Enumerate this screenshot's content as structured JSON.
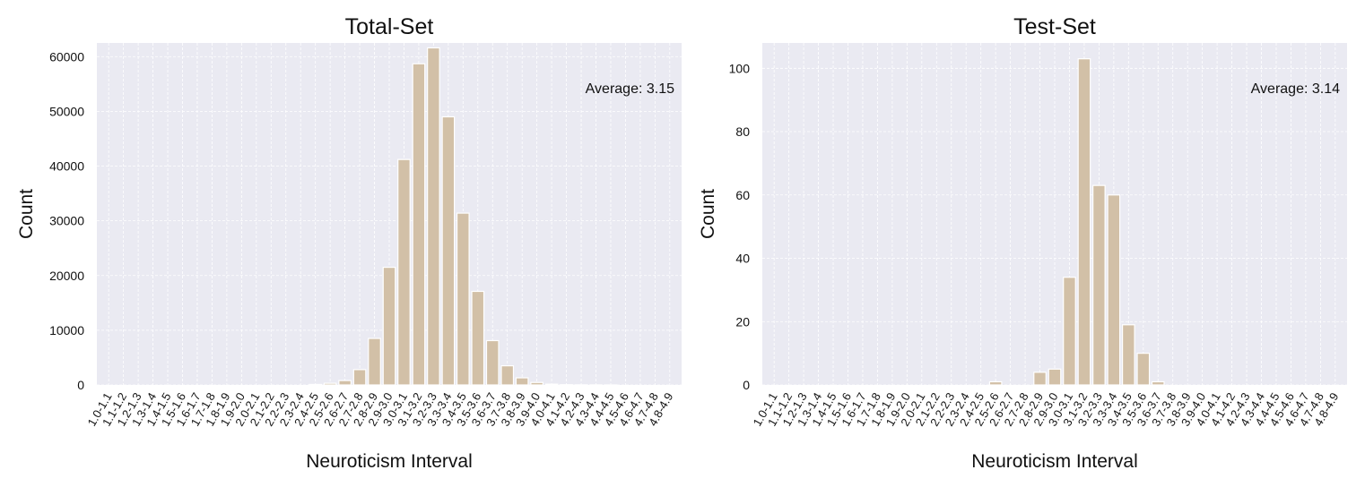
{
  "colors": {
    "background": "#eaeaf2",
    "bar": "#d2c0a7",
    "grid": "#ffffff",
    "text": "#111111"
  },
  "chart_data": [
    {
      "type": "bar",
      "title": "Total-Set",
      "xlabel": "Neuroticism Interval",
      "ylabel": "Count",
      "ylim": [
        0,
        62500
      ],
      "yticks": [
        0,
        10000,
        20000,
        30000,
        40000,
        50000,
        60000
      ],
      "annotation": "Average: 3.15",
      "categories": [
        "1.0-1.1",
        "1.1-1.2",
        "1.2-1.3",
        "1.3-1.4",
        "1.4-1.5",
        "1.5-1.6",
        "1.6-1.7",
        "1.7-1.8",
        "1.8-1.9",
        "1.9-2.0",
        "2.0-2.1",
        "2.1-2.2",
        "2.2-2.3",
        "2.3-2.4",
        "2.4-2.5",
        "2.5-2.6",
        "2.6-2.7",
        "2.7-2.8",
        "2.8-2.9",
        "2.9-3.0",
        "3.0-3.1",
        "3.1-3.2",
        "3.2-3.3",
        "3.3-3.4",
        "3.4-3.5",
        "3.5-3.6",
        "3.6-3.7",
        "3.7-3.8",
        "3.8-3.9",
        "3.9-4.0",
        "4.0-4.1",
        "4.1-4.2",
        "4.2-4.3",
        "4.3-4.4",
        "4.4-4.5",
        "4.5-4.6",
        "4.6-4.7",
        "4.7-4.8",
        "4.8-4.9"
      ],
      "values": [
        0,
        0,
        0,
        0,
        0,
        0,
        0,
        0,
        0,
        0,
        0,
        0,
        0,
        0,
        100,
        300,
        800,
        2800,
        8500,
        21500,
        41200,
        58700,
        61600,
        49000,
        31400,
        17100,
        8100,
        3500,
        1300,
        450,
        150,
        50,
        20,
        10,
        5,
        0,
        0,
        0,
        0
      ]
    },
    {
      "type": "bar",
      "title": "Test-Set",
      "xlabel": "Neuroticism Interval",
      "ylabel": "Count",
      "ylim": [
        0,
        108
      ],
      "yticks": [
        0,
        20,
        40,
        60,
        80,
        100
      ],
      "annotation": "Average: 3.14",
      "categories": [
        "1.0-1.1",
        "1.1-1.2",
        "1.2-1.3",
        "1.3-1.4",
        "1.4-1.5",
        "1.5-1.6",
        "1.6-1.7",
        "1.7-1.8",
        "1.8-1.9",
        "1.9-2.0",
        "2.0-2.1",
        "2.1-2.2",
        "2.2-2.3",
        "2.3-2.4",
        "2.4-2.5",
        "2.5-2.6",
        "2.6-2.7",
        "2.7-2.8",
        "2.8-2.9",
        "2.9-3.0",
        "3.0-3.1",
        "3.1-3.2",
        "3.2-3.3",
        "3.3-3.4",
        "3.4-3.5",
        "3.5-3.6",
        "3.6-3.7",
        "3.7-3.8",
        "3.8-3.9",
        "3.9-4.0",
        "4.0-4.1",
        "4.1-4.2",
        "4.2-4.3",
        "4.3-4.4",
        "4.4-4.5",
        "4.5-4.6",
        "4.6-4.7",
        "4.7-4.8",
        "4.8-4.9"
      ],
      "values": [
        0,
        0,
        0,
        0,
        0,
        0,
        0,
        0,
        0,
        0,
        0,
        0,
        0,
        0,
        0,
        1,
        0,
        0,
        4,
        5,
        34,
        103,
        63,
        60,
        19,
        10,
        1,
        0,
        0,
        0,
        0,
        0,
        0,
        0,
        0,
        0,
        0,
        0,
        0
      ]
    }
  ]
}
